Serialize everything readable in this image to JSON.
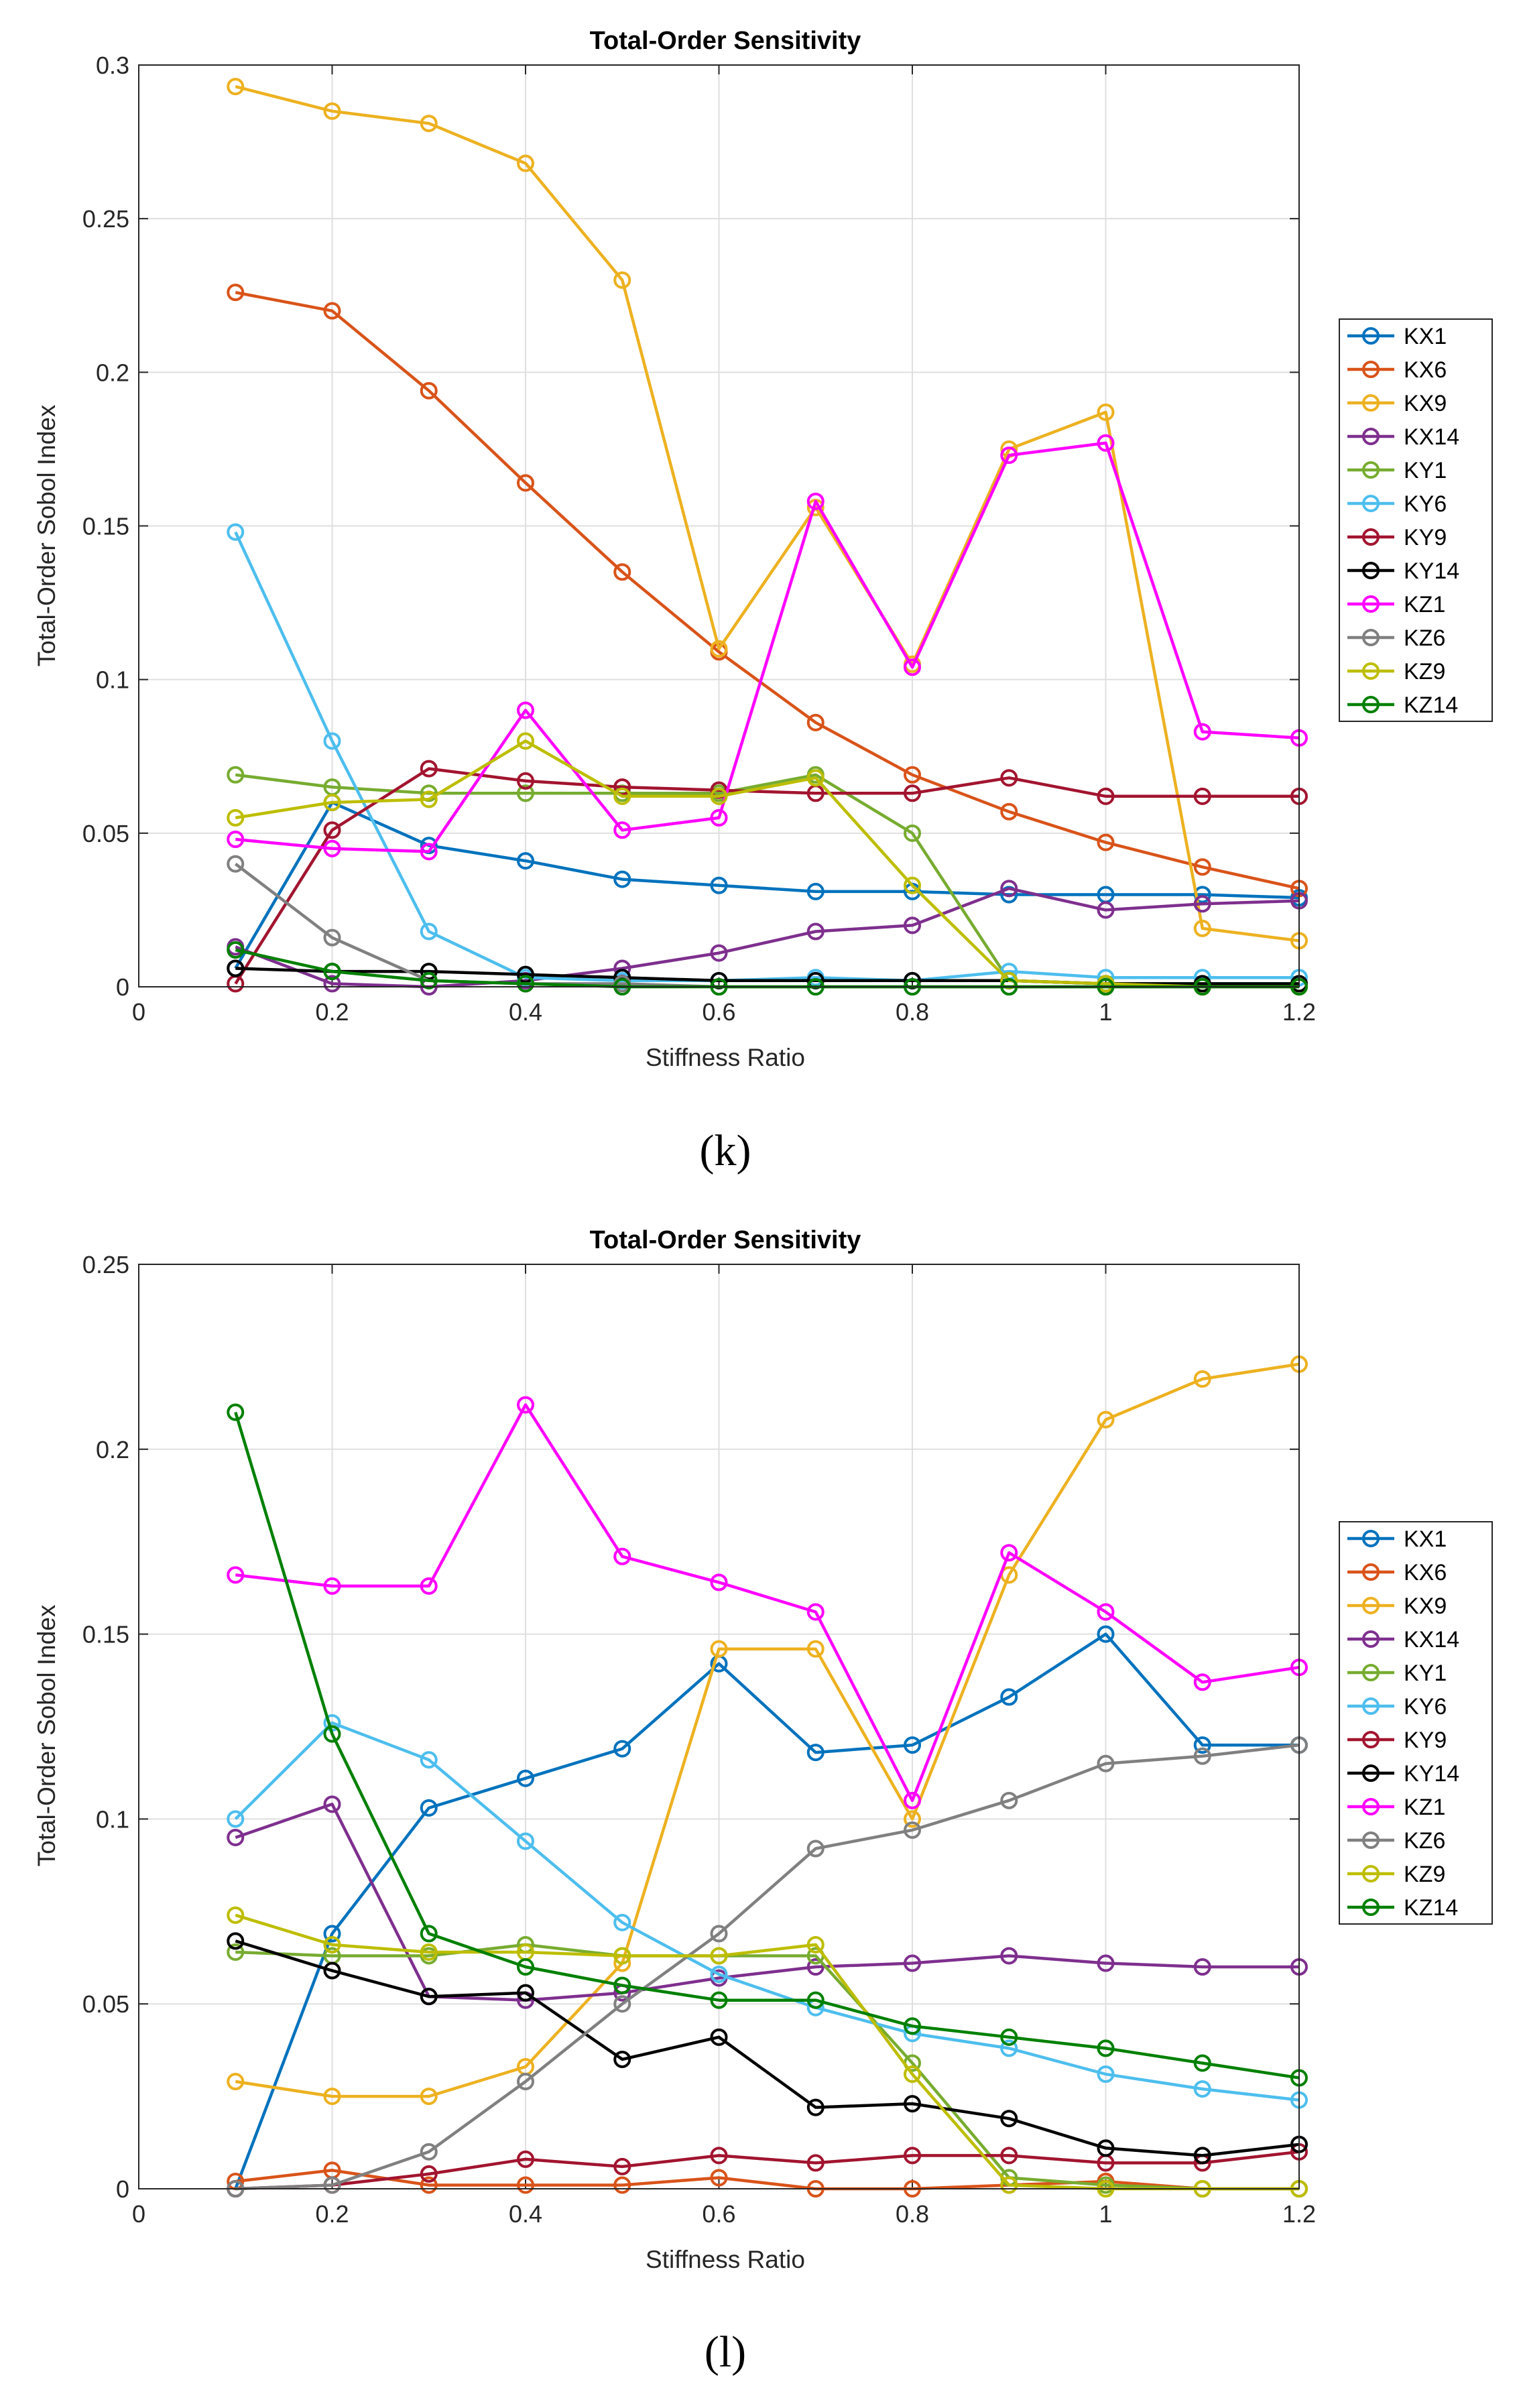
{
  "panels": [
    {
      "caption": "(k)"
    },
    {
      "caption": "(l)"
    }
  ],
  "chart_data": [
    {
      "type": "line",
      "title": "Total-Order Sensitivity",
      "xlabel": "Stiffness Ratio",
      "ylabel": "Total-Order Sobol Index",
      "xlim": [
        0,
        1.2
      ],
      "ylim": [
        0,
        0.3
      ],
      "xticks": [
        0,
        0.2,
        0.4,
        0.6,
        0.8,
        1,
        1.2
      ],
      "xtick_labels": [
        "0",
        "0.2",
        "0.4",
        "0.6",
        "0.8",
        "1",
        "1.2"
      ],
      "yticks": [
        0,
        0.05,
        0.1,
        0.15,
        0.2,
        0.25,
        0.3
      ],
      "ytick_labels": [
        "0",
        "0.05",
        "0.1",
        "0.15",
        "0.2",
        "0.25",
        "0.3"
      ],
      "grid": true,
      "legend_position": "right",
      "marker": "circle",
      "x": [
        0.1,
        0.2,
        0.3,
        0.4,
        0.5,
        0.6,
        0.7,
        0.8,
        0.9,
        1.0,
        1.1,
        1.2
      ],
      "series": [
        {
          "name": "KX1",
          "color": "#0072BD",
          "values": [
            0.006,
            0.06,
            0.046,
            0.041,
            0.035,
            0.033,
            0.031,
            0.031,
            0.03,
            0.03,
            0.03,
            0.029
          ]
        },
        {
          "name": "KX6",
          "color": "#D95319",
          "values": [
            0.226,
            0.22,
            0.194,
            0.164,
            0.135,
            0.109,
            0.086,
            0.069,
            0.057,
            0.047,
            0.039,
            0.032
          ]
        },
        {
          "name": "KX9",
          "color": "#EDB120",
          "values": [
            0.293,
            0.285,
            0.281,
            0.268,
            0.23,
            0.11,
            0.156,
            0.105,
            0.175,
            0.187,
            0.019,
            0.015
          ]
        },
        {
          "name": "KX14",
          "color": "#7E2F8E",
          "values": [
            0.013,
            0.001,
            0.0,
            0.002,
            0.006,
            0.011,
            0.018,
            0.02,
            0.032,
            0.025,
            0.027,
            0.028
          ]
        },
        {
          "name": "KY1",
          "color": "#77AC30",
          "values": [
            0.069,
            0.065,
            0.063,
            0.063,
            0.063,
            0.063,
            0.069,
            0.05,
            0.002,
            0.001,
            0.001,
            0.001
          ]
        },
        {
          "name": "KY6",
          "color": "#4DBEEE",
          "values": [
            0.148,
            0.08,
            0.018,
            0.003,
            0.002,
            0.002,
            0.003,
            0.002,
            0.005,
            0.003,
            0.003,
            0.003
          ]
        },
        {
          "name": "KY9",
          "color": "#A2142F",
          "values": [
            0.001,
            0.051,
            0.071,
            0.067,
            0.065,
            0.064,
            0.063,
            0.063,
            0.068,
            0.062,
            0.062,
            0.062
          ]
        },
        {
          "name": "KY14",
          "color": "#000000",
          "values": [
            0.006,
            0.005,
            0.005,
            0.004,
            0.003,
            0.002,
            0.002,
            0.002,
            0.002,
            0.001,
            0.001,
            0.001
          ]
        },
        {
          "name": "KZ1",
          "color": "#FF00FF",
          "values": [
            0.048,
            0.045,
            0.044,
            0.09,
            0.051,
            0.055,
            0.158,
            0.104,
            0.173,
            0.177,
            0.083,
            0.081
          ]
        },
        {
          "name": "KZ6",
          "color": "#808080",
          "values": [
            0.04,
            0.016,
            0.002,
            0.001,
            0.001,
            0.0,
            0.0,
            0.0,
            0.0,
            0.0,
            0.0,
            0.0
          ]
        },
        {
          "name": "KZ9",
          "color": "#BDBD00",
          "values": [
            0.055,
            0.06,
            0.061,
            0.08,
            0.062,
            0.062,
            0.068,
            0.033,
            0.002,
            0.001,
            0.0,
            0.0
          ]
        },
        {
          "name": "KZ14",
          "color": "#008000",
          "values": [
            0.012,
            0.005,
            0.002,
            0.001,
            0.0,
            0.0,
            0.0,
            0.0,
            0.0,
            0.0,
            0.0,
            0.0
          ]
        }
      ]
    },
    {
      "type": "line",
      "title": "Total-Order Sensitivity",
      "xlabel": "Stiffness Ratio",
      "ylabel": "Total-Order Sobol Index",
      "xlim": [
        0,
        1.2
      ],
      "ylim": [
        0,
        0.25
      ],
      "xticks": [
        0,
        0.2,
        0.4,
        0.6,
        0.8,
        1,
        1.2
      ],
      "xtick_labels": [
        "0",
        "0.2",
        "0.4",
        "0.6",
        "0.8",
        "1",
        "1.2"
      ],
      "yticks": [
        0,
        0.05,
        0.1,
        0.15,
        0.2,
        0.25
      ],
      "ytick_labels": [
        "0",
        "0.05",
        "0.1",
        "0.15",
        "0.2",
        "0.25"
      ],
      "grid": true,
      "legend_position": "right",
      "marker": "circle",
      "x": [
        0.1,
        0.2,
        0.3,
        0.4,
        0.5,
        0.6,
        0.7,
        0.8,
        0.9,
        1.0,
        1.1,
        1.2
      ],
      "series": [
        {
          "name": "KX1",
          "color": "#0072BD",
          "values": [
            0.0,
            0.069,
            0.103,
            0.111,
            0.119,
            0.142,
            0.118,
            0.12,
            0.133,
            0.15,
            0.12,
            0.12
          ]
        },
        {
          "name": "KX6",
          "color": "#D95319",
          "values": [
            0.002,
            0.005,
            0.001,
            0.001,
            0.001,
            0.003,
            0.0,
            0.0,
            0.001,
            0.002,
            0.0,
            0.0
          ]
        },
        {
          "name": "KX9",
          "color": "#EDB120",
          "values": [
            0.029,
            0.025,
            0.025,
            0.033,
            0.061,
            0.146,
            0.146,
            0.1,
            0.166,
            0.208,
            0.219,
            0.223
          ]
        },
        {
          "name": "KX14",
          "color": "#7E2F8E",
          "values": [
            0.095,
            0.104,
            0.052,
            0.051,
            0.053,
            0.057,
            0.06,
            0.061,
            0.063,
            0.061,
            0.06,
            0.06
          ]
        },
        {
          "name": "KY1",
          "color": "#77AC30",
          "values": [
            0.064,
            0.063,
            0.063,
            0.066,
            0.063,
            0.063,
            0.063,
            0.034,
            0.003,
            0.001,
            0.0,
            0.0
          ]
        },
        {
          "name": "KY6",
          "color": "#4DBEEE",
          "values": [
            0.1,
            0.126,
            0.116,
            0.094,
            0.072,
            0.058,
            0.049,
            0.042,
            0.038,
            0.031,
            0.027,
            0.024
          ]
        },
        {
          "name": "KY9",
          "color": "#A2142F",
          "values": [
            0.0,
            0.001,
            0.004,
            0.008,
            0.006,
            0.009,
            0.007,
            0.009,
            0.009,
            0.007,
            0.007,
            0.01
          ]
        },
        {
          "name": "KY14",
          "color": "#000000",
          "values": [
            0.067,
            0.059,
            0.052,
            0.053,
            0.035,
            0.041,
            0.022,
            0.023,
            0.019,
            0.011,
            0.009,
            0.012
          ]
        },
        {
          "name": "KZ1",
          "color": "#FF00FF",
          "values": [
            0.166,
            0.163,
            0.163,
            0.212,
            0.171,
            0.164,
            0.156,
            0.105,
            0.172,
            0.156,
            0.137,
            0.141
          ]
        },
        {
          "name": "KZ6",
          "color": "#808080",
          "values": [
            0.0,
            0.001,
            0.01,
            0.029,
            0.05,
            0.069,
            0.092,
            0.097,
            0.105,
            0.115,
            0.117,
            0.12
          ]
        },
        {
          "name": "KZ9",
          "color": "#BDBD00",
          "values": [
            0.074,
            0.066,
            0.064,
            0.064,
            0.063,
            0.063,
            0.066,
            0.031,
            0.001,
            0.0,
            0.0,
            0.0
          ]
        },
        {
          "name": "KZ14",
          "color": "#008000",
          "values": [
            0.21,
            0.123,
            0.069,
            0.06,
            0.055,
            0.051,
            0.051,
            0.044,
            0.041,
            0.038,
            0.034,
            0.03
          ]
        }
      ]
    }
  ]
}
